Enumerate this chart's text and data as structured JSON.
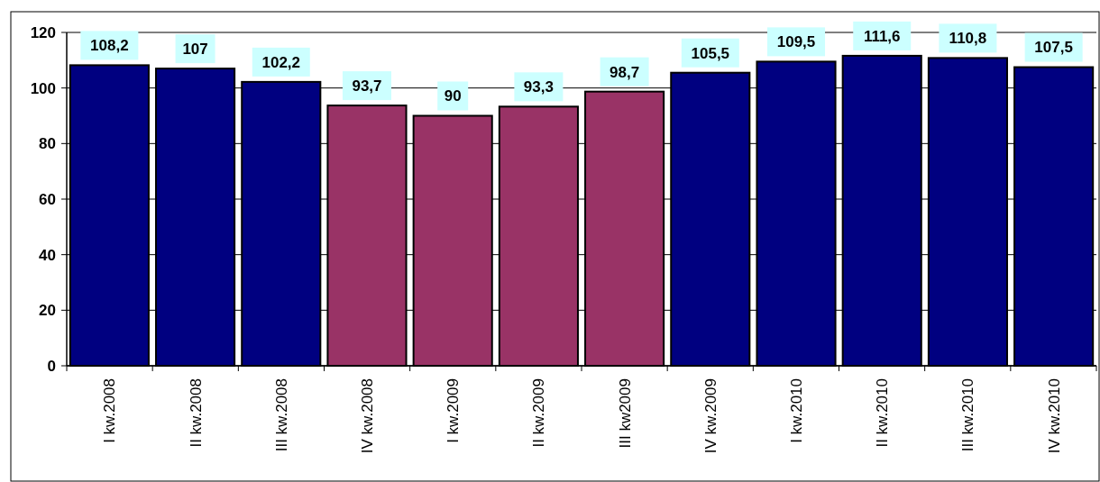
{
  "chart_data": {
    "type": "bar",
    "categories": [
      "I kw.2008",
      "II kw.2008",
      "III kw.2008",
      "IV kw.2008",
      "I kw.2009",
      "II kw.2009",
      "III kw2009",
      "IV kw.2009",
      "I kw.2010",
      "II kw.2010",
      "III kw.2010",
      "IV kw.2010"
    ],
    "values": [
      108.2,
      107,
      102.2,
      93.7,
      90,
      93.3,
      98.7,
      105.5,
      109.5,
      111.6,
      110.8,
      107.5
    ],
    "colors": [
      "#000080",
      "#000080",
      "#000080",
      "#993366",
      "#993366",
      "#993366",
      "#993366",
      "#000080",
      "#000080",
      "#000080",
      "#000080",
      "#000080"
    ],
    "value_labels": [
      "108,2",
      "107",
      "102,2",
      "93,7",
      "90",
      "93,3",
      "98,7",
      "105,5",
      "109,5",
      "111,6",
      "110,8",
      "107,5"
    ],
    "ylim": [
      0,
      120
    ],
    "yticks": [
      0,
      20,
      40,
      60,
      80,
      100,
      120
    ],
    "grid": "y"
  }
}
